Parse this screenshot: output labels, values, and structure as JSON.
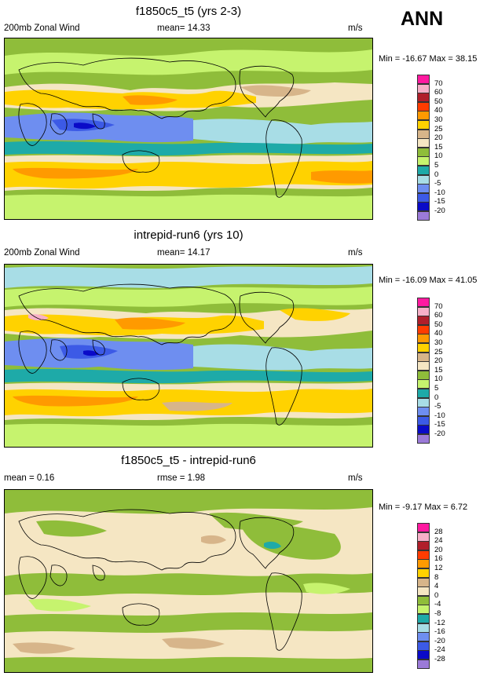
{
  "season": "ANN",
  "unit": "m/s",
  "chart_data": [
    {
      "type": "heatmap",
      "title": "f1850c5_t5 (yrs 2-3)",
      "variable": "200mb Zonal Wind",
      "mean_label": "mean=",
      "mean": "14.33",
      "units": "m/s",
      "min_label": "Min =",
      "min": "-16.67",
      "max_label": "Max =",
      "max": "38.15",
      "levels": [
        "70",
        "60",
        "50",
        "40",
        "30",
        "25",
        "20",
        "15",
        "10",
        "5",
        "0",
        "-5",
        "-10",
        "-15",
        "-20"
      ],
      "colors": [
        "#ff1aa0",
        "#f7b0c8",
        "#b01e2a",
        "#ff3c00",
        "#ff9a00",
        "#ffd200",
        "#d7b58a",
        "#f5e6c3",
        "#8fbd3a",
        "#c6f36e",
        "#1eaaa8",
        "#a8dde6",
        "#6e8ef0",
        "#3c5ae6",
        "#0a0ac8",
        "#9b7ad8"
      ],
      "xlim": [
        0,
        360
      ],
      "ylim": [
        -90,
        90
      ]
    },
    {
      "type": "heatmap",
      "title": "intrepid-run6 (yrs 10)",
      "variable": "200mb Zonal Wind",
      "mean_label": "mean=",
      "mean": "14.17",
      "units": "m/s",
      "min_label": "Min =",
      "min": "-16.09",
      "max_label": "Max =",
      "max": "41.05",
      "levels": [
        "70",
        "60",
        "50",
        "40",
        "30",
        "25",
        "20",
        "15",
        "10",
        "5",
        "0",
        "-5",
        "-10",
        "-15",
        "-20"
      ],
      "colors": [
        "#ff1aa0",
        "#f7b0c8",
        "#b01e2a",
        "#ff3c00",
        "#ff9a00",
        "#ffd200",
        "#d7b58a",
        "#f5e6c3",
        "#8fbd3a",
        "#c6f36e",
        "#1eaaa8",
        "#a8dde6",
        "#6e8ef0",
        "#3c5ae6",
        "#0a0ac8",
        "#9b7ad8"
      ],
      "xlim": [
        0,
        360
      ],
      "ylim": [
        -90,
        90
      ]
    },
    {
      "type": "heatmap",
      "title": "f1850c5_t5 - intrepid-run6",
      "mean_label": "mean =",
      "mean": "0.16",
      "rmse_label": "rmse =",
      "rmse": "1.98",
      "units": "m/s",
      "min_label": "Min =",
      "min": "-9.17",
      "max_label": "Max =",
      "max": "6.72",
      "levels": [
        "28",
        "24",
        "20",
        "16",
        "12",
        "8",
        "4",
        "0",
        "-4",
        "-8",
        "-12",
        "-16",
        "-20",
        "-24",
        "-28"
      ],
      "colors": [
        "#ff1aa0",
        "#f7b0c8",
        "#b01e2a",
        "#ff3c00",
        "#ff9a00",
        "#ffd200",
        "#d7b58a",
        "#f5e6c3",
        "#8fbd3a",
        "#c6f36e",
        "#1eaaa8",
        "#a8dde6",
        "#6e8ef0",
        "#3c5ae6",
        "#0a0ac8",
        "#9b7ad8"
      ],
      "xlim": [
        0,
        360
      ],
      "ylim": [
        -90,
        90
      ]
    }
  ]
}
